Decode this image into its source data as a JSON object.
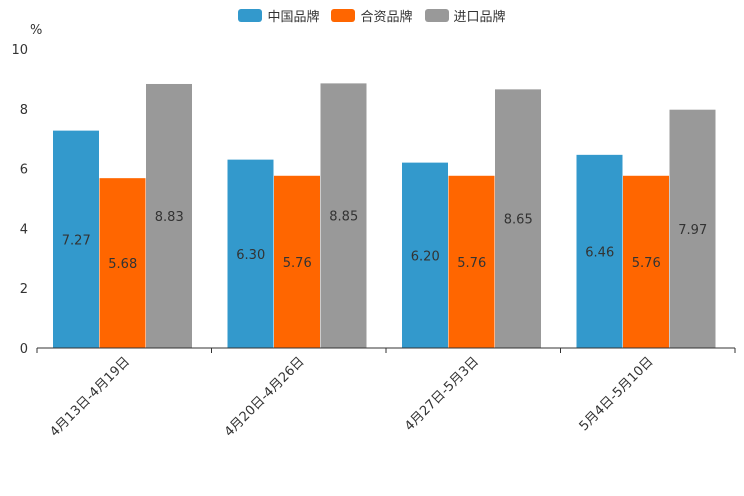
{
  "chart_data": {
    "type": "bar",
    "title": "",
    "xlabel": "",
    "ylabel": "%",
    "ylim": [
      0,
      10
    ],
    "yticks": [
      0,
      2,
      4,
      6,
      8,
      10
    ],
    "grid": false,
    "legend_position": "top-center",
    "categories": [
      "4月13日-4月19日",
      "4月20日-4月26日",
      "4月27日-5月3日",
      "5月4日-5月10日"
    ],
    "series": [
      {
        "name": "中国品牌",
        "color": "#3399cc",
        "values": [
          7.27,
          6.3,
          6.2,
          6.46
        ],
        "labels": [
          "7.27",
          "6.30",
          "6.20",
          "6.46"
        ]
      },
      {
        "name": "合资品牌",
        "color": "#ff6600",
        "values": [
          5.68,
          5.76,
          5.76,
          5.76
        ],
        "labels": [
          "5.68",
          "5.76",
          "5.76",
          "5.76"
        ]
      },
      {
        "name": "进口品牌",
        "color": "#999999",
        "values": [
          8.83,
          8.85,
          8.65,
          7.97
        ],
        "labels": [
          "8.83",
          "8.85",
          "8.65",
          "7.97"
        ]
      }
    ]
  }
}
